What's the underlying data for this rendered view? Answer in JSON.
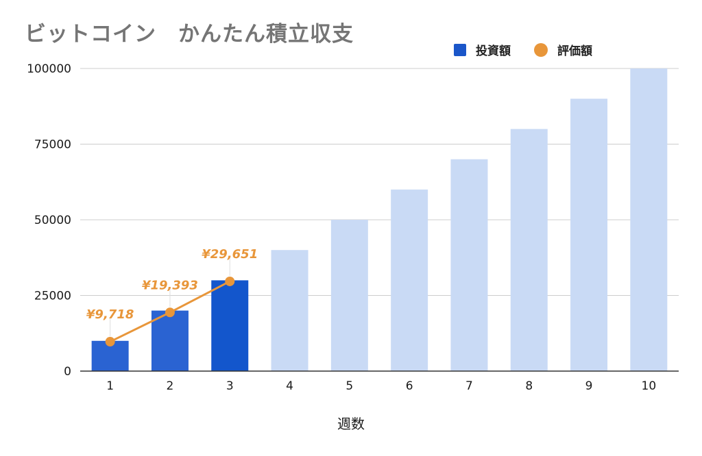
{
  "chart_data": {
    "type": "bar",
    "title": "ビットコイン　かんたん積立収支",
    "xlabel": "週数",
    "ylabel": "",
    "categories": [
      "1",
      "2",
      "3",
      "4",
      "5",
      "6",
      "7",
      "8",
      "9",
      "10"
    ],
    "ylim": [
      0,
      100000
    ],
    "yticks": [
      0,
      25000,
      50000,
      75000,
      100000
    ],
    "yticklabels": [
      "0",
      "25000",
      "50000",
      "75000",
      "100000"
    ],
    "grid": true,
    "legend_position": "top-right",
    "series": [
      {
        "name": "投資額",
        "type": "bar",
        "values": [
          10000,
          20000,
          30000,
          40000,
          50000,
          60000,
          70000,
          80000,
          90000,
          100000
        ],
        "colors": [
          "#2a63d2",
          "#2a63d2",
          "#1356cc",
          "#c9daf5",
          "#c9daf5",
          "#c9daf5",
          "#c9daf5",
          "#c9daf5",
          "#c9daf5",
          "#c9daf5"
        ]
      },
      {
        "name": "評価額",
        "type": "line",
        "color": "#e8963a",
        "values": [
          9718,
          19393,
          29651,
          null,
          null,
          null,
          null,
          null,
          null,
          null
        ],
        "data_labels": [
          "¥9,718",
          "¥19,393",
          "¥29,651",
          "",
          "",
          "",
          "",
          "",
          "",
          ""
        ]
      }
    ]
  },
  "legend": {
    "items": [
      {
        "label": "投資額",
        "color": "#1a56c9",
        "marker": "square"
      },
      {
        "label": "評価額",
        "color": "#e8963a",
        "marker": "circle"
      }
    ]
  }
}
